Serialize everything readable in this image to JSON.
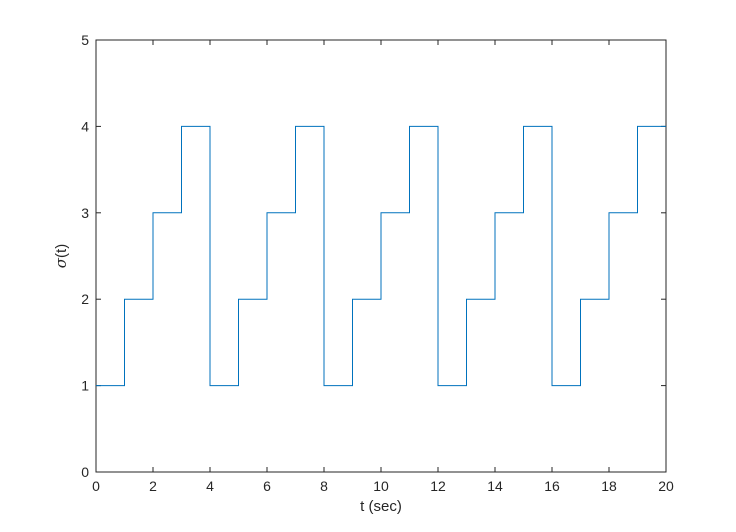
{
  "chart_data": {
    "type": "line",
    "step": true,
    "title": "",
    "xlabel": "t (sec)",
    "ylabel": "σ(t)",
    "xlim": [
      0,
      20
    ],
    "ylim": [
      0,
      5
    ],
    "xticks": [
      "0",
      "2",
      "4",
      "6",
      "8",
      "10",
      "12",
      "14",
      "16",
      "18",
      "20"
    ],
    "yticks": [
      "0",
      "1",
      "2",
      "3",
      "4",
      "5"
    ],
    "grid": false,
    "box": true,
    "series": [
      {
        "color": "#0072bd",
        "x": [
          0,
          1,
          1,
          2,
          2,
          3,
          3,
          4,
          4,
          5,
          5,
          6,
          6,
          7,
          7,
          8,
          8,
          9,
          9,
          10,
          10,
          11,
          11,
          12,
          12,
          13,
          13,
          14,
          14,
          15,
          15,
          16,
          16,
          17,
          17,
          18,
          18,
          19,
          19,
          20
        ],
        "y": [
          1,
          1,
          2,
          2,
          3,
          3,
          4,
          4,
          1,
          1,
          2,
          2,
          3,
          3,
          4,
          4,
          1,
          1,
          2,
          2,
          3,
          3,
          4,
          4,
          1,
          1,
          2,
          2,
          3,
          3,
          4,
          4,
          1,
          1,
          2,
          2,
          3,
          3,
          4,
          4
        ]
      }
    ]
  }
}
